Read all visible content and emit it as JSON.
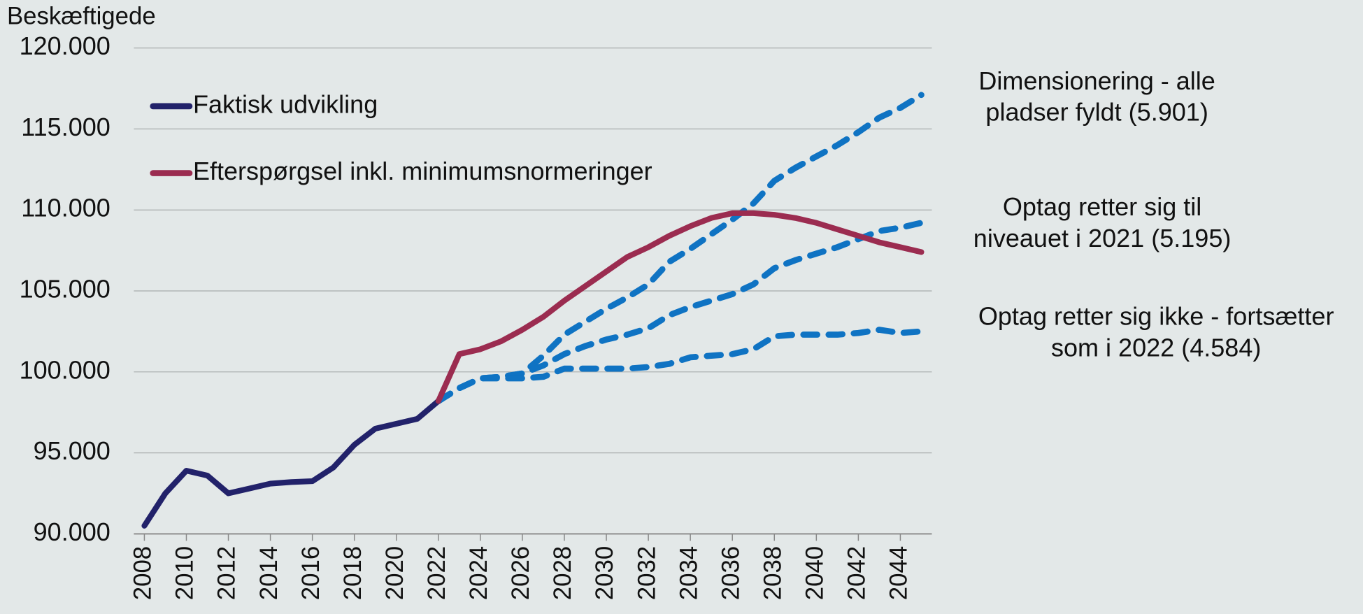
{
  "chart_data": {
    "type": "line",
    "ylabel": "Beskæftigede",
    "xlim": [
      2007.5,
      2045.5
    ],
    "xticks": [
      2008,
      2010,
      2012,
      2014,
      2016,
      2018,
      2020,
      2022,
      2024,
      2026,
      2028,
      2030,
      2032,
      2034,
      2036,
      2038,
      2040,
      2042,
      2044
    ],
    "ylim": [
      90000,
      120000
    ],
    "yticks": [
      {
        "value": 90000,
        "label": "90.000"
      },
      {
        "value": 95000,
        "label": "95.000"
      },
      {
        "value": 100000,
        "label": "100.000"
      },
      {
        "value": 105000,
        "label": "105.000"
      },
      {
        "value": 110000,
        "label": "110.000"
      },
      {
        "value": 115000,
        "label": "115.000"
      },
      {
        "value": 120000,
        "label": "120.000"
      }
    ],
    "grid": true,
    "legend": "upper left",
    "series": [
      {
        "name": "Faktisk udvikling",
        "color": "#22226a",
        "dashed": false,
        "x": [
          2008,
          2009,
          2010,
          2011,
          2012,
          2013,
          2014,
          2015,
          2016,
          2017,
          2018,
          2019,
          2020,
          2021,
          2022
        ],
        "values": [
          90500,
          92500,
          93900,
          93600,
          92500,
          92800,
          93100,
          93200,
          93250,
          94100,
          95500,
          96500,
          96800,
          97100,
          98200
        ]
      },
      {
        "name": "Efterspørgsel inkl. minimumsnormeringer",
        "color": "#9b2c50",
        "dashed": false,
        "x": [
          2022,
          2023,
          2024,
          2025,
          2026,
          2027,
          2028,
          2029,
          2030,
          2031,
          2032,
          2033,
          2034,
          2035,
          2036,
          2037,
          2038,
          2039,
          2040,
          2041,
          2042,
          2043,
          2044,
          2045
        ],
        "values": [
          98200,
          101100,
          101400,
          101900,
          102600,
          103400,
          104400,
          105300,
          106200,
          107100,
          107700,
          108400,
          109000,
          109500,
          109800,
          109800,
          109700,
          109500,
          109200,
          108800,
          108400,
          108000,
          107700,
          107400
        ]
      },
      {
        "label_lines": [
          "Dimensionering - alle",
          "pladser fyldt (5.901)"
        ],
        "color": "#0f73c3",
        "dashed": true,
        "x": [
          2022,
          2023,
          2024,
          2025,
          2026,
          2027,
          2028,
          2029,
          2030,
          2031,
          2032,
          2033,
          2034,
          2035,
          2036,
          2037,
          2038,
          2039,
          2040,
          2041,
          2042,
          2043,
          2044,
          2045
        ],
        "values": [
          98200,
          99000,
          99600,
          99700,
          99900,
          101000,
          102300,
          103100,
          103900,
          104600,
          105400,
          106800,
          107600,
          108500,
          109400,
          110400,
          111800,
          112600,
          113300,
          114000,
          114800,
          115700,
          116300,
          117100
        ]
      },
      {
        "label_lines": [
          "Optag retter sig til",
          "niveauet i 2021 (5.195)"
        ],
        "color": "#0f73c3",
        "dashed": true,
        "x": [
          2022,
          2023,
          2024,
          2025,
          2026,
          2027,
          2028,
          2029,
          2030,
          2031,
          2032,
          2033,
          2034,
          2035,
          2036,
          2037,
          2038,
          2039,
          2040,
          2041,
          2042,
          2043,
          2044,
          2045
        ],
        "values": [
          98200,
          99000,
          99600,
          99700,
          99900,
          100400,
          101100,
          101600,
          102000,
          102300,
          102700,
          103500,
          104000,
          104400,
          104800,
          105400,
          106400,
          106900,
          107300,
          107700,
          108200,
          108700,
          108900,
          109200
        ]
      },
      {
        "label_lines": [
          "Optag retter sig ikke - fortsætter",
          "som i 2022 (4.584)"
        ],
        "color": "#0f73c3",
        "dashed": true,
        "x": [
          2022,
          2023,
          2024,
          2025,
          2026,
          2027,
          2028,
          2029,
          2030,
          2031,
          2032,
          2033,
          2034,
          2035,
          2036,
          2037,
          2038,
          2039,
          2040,
          2041,
          2042,
          2043,
          2044,
          2045
        ],
        "values": [
          98200,
          99000,
          99600,
          99600,
          99600,
          99700,
          100200,
          100200,
          100200,
          100200,
          100300,
          100500,
          100900,
          101000,
          101100,
          101400,
          102200,
          102300,
          102300,
          102300,
          102400,
          102600,
          102400,
          102500
        ]
      }
    ]
  }
}
